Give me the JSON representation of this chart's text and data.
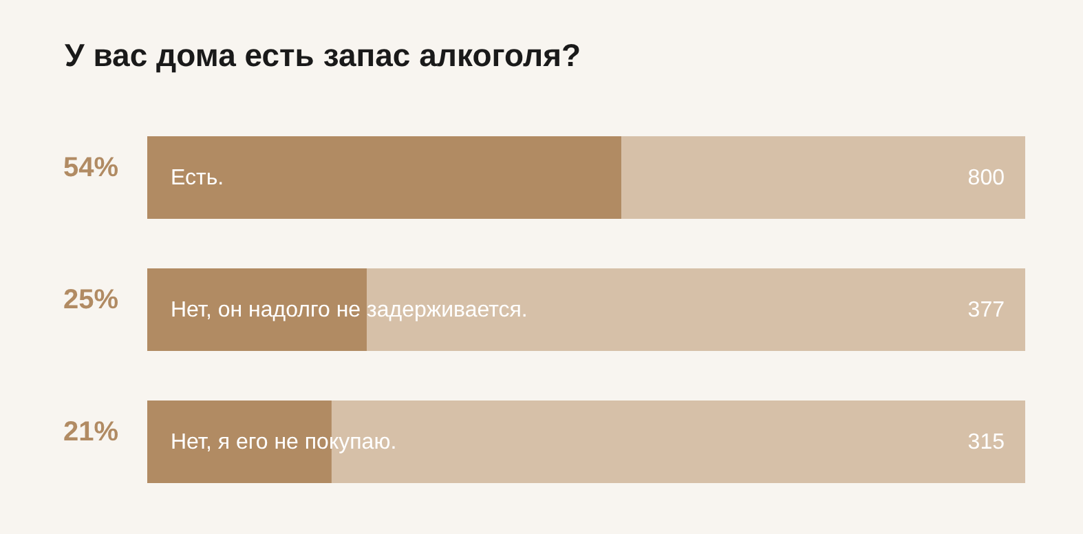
{
  "chart_data": {
    "type": "bar",
    "orientation": "horizontal",
    "stacked": true,
    "title": "У вас дома есть запас алкоголя?",
    "categories": [
      "Есть.",
      "Нет, он надолго не задерживается.",
      "Нет, я его не покупаю."
    ],
    "xlim": [
      0,
      100
    ],
    "series": [
      {
        "color": "#b18b63",
        "values": [
          54,
          25,
          21
        ],
        "value_labels": [
          "54%",
          "25%",
          "21%"
        ]
      },
      {
        "color": "#d6c0a8",
        "values": [
          46,
          75,
          79
        ]
      }
    ],
    "annotations": [
      "800",
      "377",
      "315"
    ]
  }
}
